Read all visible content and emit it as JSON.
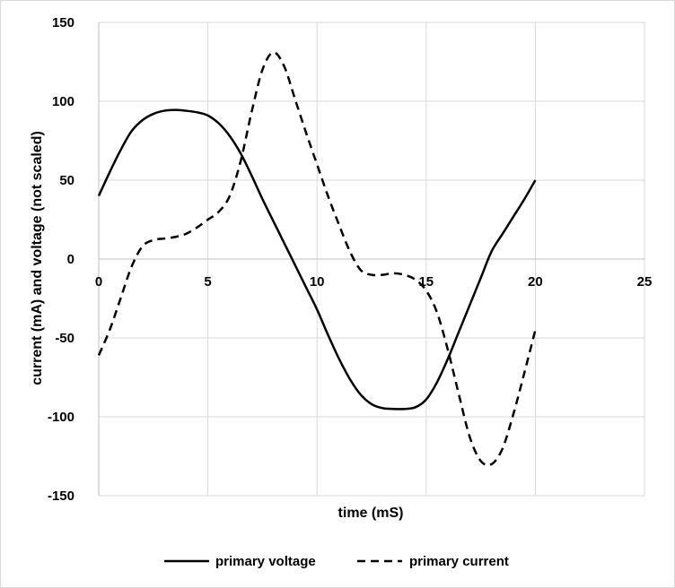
{
  "chart_data": {
    "type": "line",
    "title": "",
    "xlabel": "time (mS)",
    "ylabel": "current (mA) and  voltage (not scaled)",
    "xlim": [
      0,
      25
    ],
    "ylim": [
      -150,
      150
    ],
    "x_ticks": [
      0,
      5,
      10,
      15,
      20,
      25
    ],
    "x_tick_labels": [
      "0",
      "5",
      "10",
      "15",
      "20",
      "25"
    ],
    "y_ticks": [
      150,
      100,
      50,
      0,
      -50,
      -100,
      -150
    ],
    "y_tick_labels": [
      "150",
      "100",
      "50",
      "0",
      "-50",
      "-100",
      "-150"
    ],
    "grid": true,
    "legend": "bottom",
    "series": [
      {
        "name": "primary voltage",
        "style": "solid",
        "color": "#000000",
        "x": [
          0,
          0.5,
          1,
          1.5,
          2,
          2.5,
          3,
          3.5,
          4,
          4.5,
          5,
          5.5,
          6,
          6.5,
          7,
          7.5,
          8,
          8.5,
          9,
          9.5,
          10,
          10.5,
          11,
          11.5,
          12,
          12.5,
          13,
          13.5,
          14,
          14.5,
          15,
          15.5,
          16,
          16.5,
          17,
          17.5,
          18,
          18.5,
          19,
          19.5,
          20
        ],
        "y": [
          40,
          55,
          69,
          81,
          88,
          92,
          94,
          94.5,
          94,
          93,
          91,
          86,
          78,
          67,
          53,
          38,
          24,
          10,
          -4,
          -18,
          -32,
          -48,
          -63,
          -76,
          -86,
          -92,
          -94.5,
          -95,
          -95,
          -94,
          -89,
          -78,
          -63,
          -46,
          -29,
          -12,
          5,
          16,
          27,
          38,
          50
        ]
      },
      {
        "name": "primary current",
        "style": "dashed",
        "color": "#000000",
        "x": [
          0,
          0.5,
          1,
          1.5,
          2,
          2.5,
          3,
          3.5,
          4,
          4.5,
          5,
          5.5,
          6,
          6.5,
          7,
          7.5,
          8,
          8.5,
          9,
          9.5,
          10,
          10.5,
          11,
          11.5,
          12,
          12.5,
          13,
          13.5,
          14,
          14.5,
          15,
          15.5,
          16,
          16.5,
          17,
          17.5,
          18,
          18.5,
          19,
          19.5,
          20
        ],
        "y": [
          -61,
          -45,
          -25,
          -5,
          8,
          12,
          13,
          14,
          16,
          20,
          25,
          30,
          40,
          62,
          93,
          120,
          131,
          122,
          101,
          80,
          60,
          40,
          22,
          5,
          -7,
          -10,
          -10,
          -9,
          -10,
          -13,
          -20,
          -34,
          -58,
          -86,
          -113,
          -128,
          -130,
          -120,
          -98,
          -72,
          -45
        ]
      }
    ]
  }
}
